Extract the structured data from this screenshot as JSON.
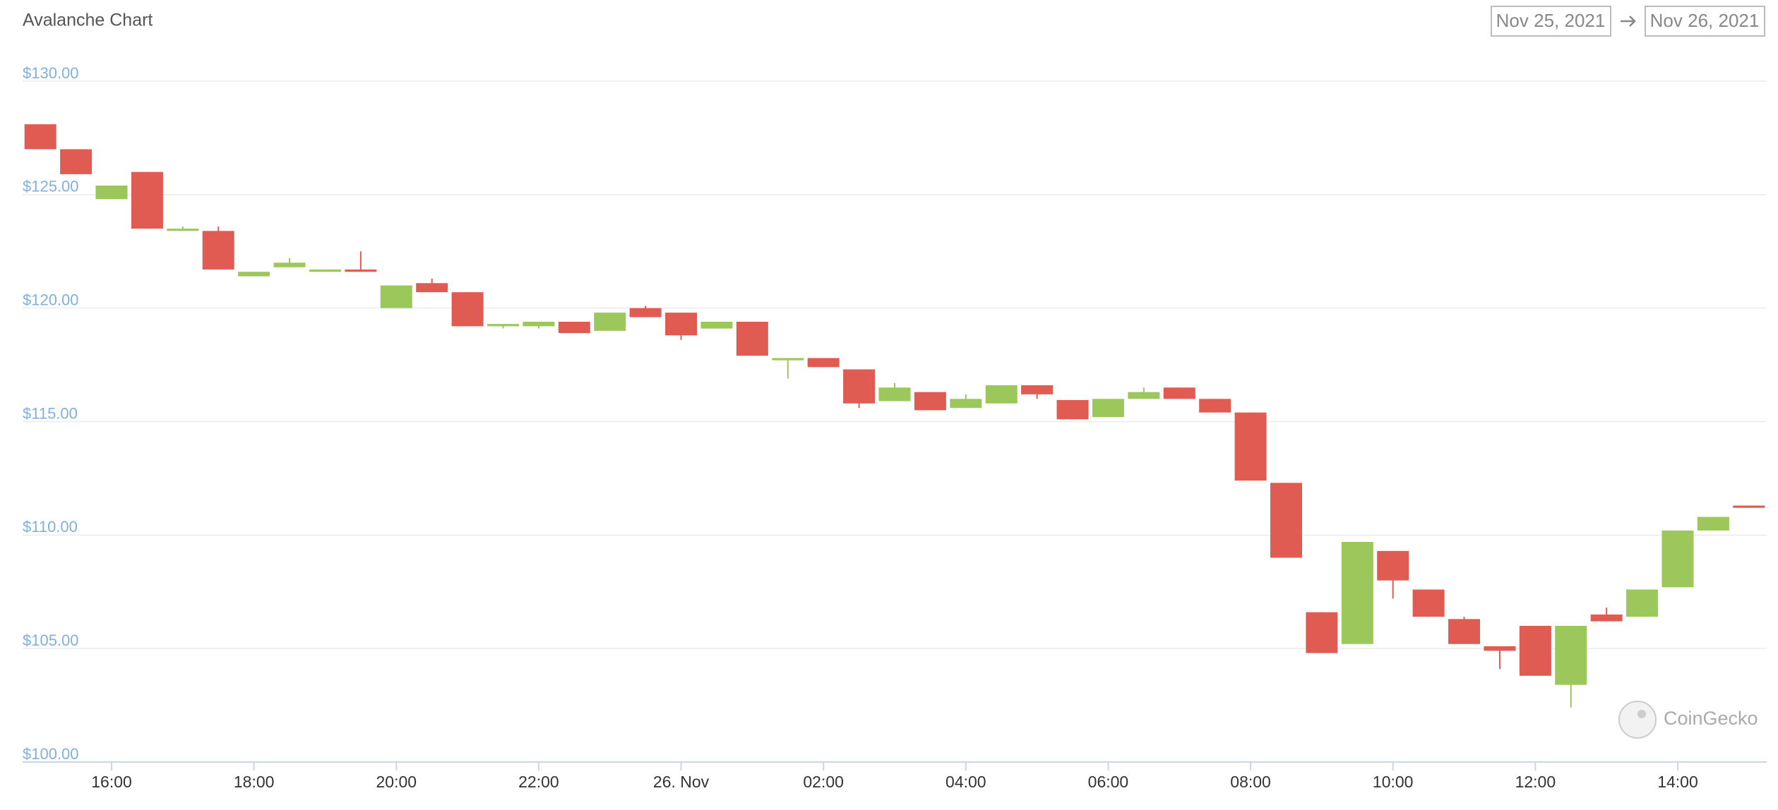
{
  "chart_data": {
    "type": "candlestick",
    "title": "Avalanche Chart",
    "date_range": {
      "from": "Nov 25, 2021",
      "to": "Nov 26, 2021"
    },
    "watermark": "CoinGecko",
    "up_color": "#9bc75b",
    "down_color": "#e05c53",
    "grid": true,
    "x": [
      "2021-11-25 15:00",
      "2021-11-25 15:30",
      "2021-11-25 16:00",
      "2021-11-25 16:30",
      "2021-11-25 17:00",
      "2021-11-25 17:30",
      "2021-11-25 18:00",
      "2021-11-25 18:30",
      "2021-11-25 19:00",
      "2021-11-25 19:30",
      "2021-11-25 20:00",
      "2021-11-25 20:30",
      "2021-11-25 21:00",
      "2021-11-25 21:30",
      "2021-11-25 22:00",
      "2021-11-25 22:30",
      "2021-11-25 23:00",
      "2021-11-25 23:30",
      "2021-11-26 00:00",
      "2021-11-26 00:30",
      "2021-11-26 01:00",
      "2021-11-26 01:30",
      "2021-11-26 02:00",
      "2021-11-26 02:30",
      "2021-11-26 03:00",
      "2021-11-26 03:30",
      "2021-11-26 04:00",
      "2021-11-26 04:30",
      "2021-11-26 05:00",
      "2021-11-26 05:30",
      "2021-11-26 06:00",
      "2021-11-26 06:30",
      "2021-11-26 07:00",
      "2021-11-26 07:30",
      "2021-11-26 08:00",
      "2021-11-26 08:30",
      "2021-11-26 09:00",
      "2021-11-26 09:30",
      "2021-11-26 10:00",
      "2021-11-26 10:30",
      "2021-11-26 11:00",
      "2021-11-26 11:30",
      "2021-11-26 12:00",
      "2021-11-26 12:30",
      "2021-11-26 13:00",
      "2021-11-26 13:30",
      "2021-11-26 14:00",
      "2021-11-26 14:30",
      "2021-11-26 15:00"
    ],
    "open": [
      128.1,
      127.0,
      124.8,
      126.0,
      123.4,
      123.4,
      121.4,
      121.8,
      121.6,
      121.7,
      120.0,
      121.1,
      120.7,
      119.2,
      119.2,
      119.4,
      119.0,
      120.0,
      119.8,
      119.1,
      119.4,
      117.7,
      117.8,
      117.3,
      115.9,
      116.3,
      115.6,
      115.8,
      116.6,
      115.95,
      115.2,
      116.0,
      116.5,
      116.0,
      115.4,
      112.3,
      106.6,
      105.2,
      109.3,
      107.6,
      106.3,
      105.1,
      106.0,
      103.4,
      106.5,
      106.4,
      107.7,
      110.2,
      111.3
    ],
    "high": [
      128.1,
      127.0,
      125.4,
      126.0,
      123.6,
      123.6,
      121.6,
      122.2,
      121.7,
      122.5,
      121.0,
      121.3,
      120.7,
      119.3,
      119.4,
      119.4,
      119.8,
      120.1,
      119.8,
      119.4,
      119.4,
      117.8,
      117.8,
      117.3,
      116.7,
      116.3,
      116.2,
      116.6,
      116.6,
      115.95,
      116.0,
      116.5,
      116.5,
      116.0,
      115.4,
      112.3,
      106.6,
      109.7,
      109.3,
      107.6,
      106.4,
      105.1,
      106.0,
      106.0,
      106.8,
      107.6,
      110.2,
      110.8,
      111.3
    ],
    "low": [
      127.0,
      125.9,
      124.8,
      123.5,
      123.4,
      121.7,
      121.4,
      121.8,
      121.6,
      121.6,
      120.0,
      120.7,
      119.2,
      119.1,
      119.1,
      118.9,
      119.0,
      119.6,
      118.6,
      119.1,
      117.9,
      116.9,
      117.4,
      115.6,
      115.9,
      115.5,
      115.6,
      115.8,
      116.0,
      115.1,
      115.2,
      116.0,
      116.0,
      115.4,
      112.4,
      109.0,
      104.8,
      105.2,
      107.2,
      106.4,
      105.2,
      104.1,
      103.8,
      102.4,
      106.2,
      106.4,
      107.7,
      110.2,
      111.2
    ],
    "close": [
      127.0,
      125.9,
      125.4,
      123.5,
      123.5,
      121.7,
      121.6,
      122.0,
      121.7,
      121.6,
      121.0,
      120.7,
      119.2,
      119.3,
      119.4,
      118.9,
      119.8,
      119.6,
      118.8,
      119.4,
      117.9,
      117.8,
      117.4,
      115.8,
      116.5,
      115.5,
      116.0,
      116.6,
      116.2,
      115.1,
      116.0,
      116.3,
      116.0,
      115.4,
      112.4,
      109.0,
      104.8,
      109.7,
      108.0,
      106.4,
      105.2,
      104.9,
      103.8,
      106.0,
      106.2,
      107.6,
      110.2,
      110.8,
      111.2
    ],
    "xlim": [
      "2021-11-25 14:45",
      "2021-11-26 15:15"
    ],
    "xticks": [
      {
        "value": "2021-11-25 16:00",
        "label": "16:00"
      },
      {
        "value": "2021-11-25 18:00",
        "label": "18:00"
      },
      {
        "value": "2021-11-25 20:00",
        "label": "20:00"
      },
      {
        "value": "2021-11-25 22:00",
        "label": "22:00"
      },
      {
        "value": "2021-11-26 00:00",
        "label": "26. Nov"
      },
      {
        "value": "2021-11-26 02:00",
        "label": "02:00"
      },
      {
        "value": "2021-11-26 04:00",
        "label": "04:00"
      },
      {
        "value": "2021-11-26 06:00",
        "label": "06:00"
      },
      {
        "value": "2021-11-26 08:00",
        "label": "08:00"
      },
      {
        "value": "2021-11-26 10:00",
        "label": "10:00"
      },
      {
        "value": "2021-11-26 12:00",
        "label": "12:00"
      },
      {
        "value": "2021-11-26 14:00",
        "label": "14:00"
      }
    ],
    "ylim": [
      100,
      130
    ],
    "yticks": [
      {
        "value": 100,
        "label": "$100.00"
      },
      {
        "value": 105,
        "label": "$105.00"
      },
      {
        "value": 110,
        "label": "$110.00"
      },
      {
        "value": 115,
        "label": "$115.00"
      },
      {
        "value": 120,
        "label": "$120.00"
      },
      {
        "value": 125,
        "label": "$125.00"
      },
      {
        "value": 130,
        "label": "$130.00"
      }
    ]
  }
}
